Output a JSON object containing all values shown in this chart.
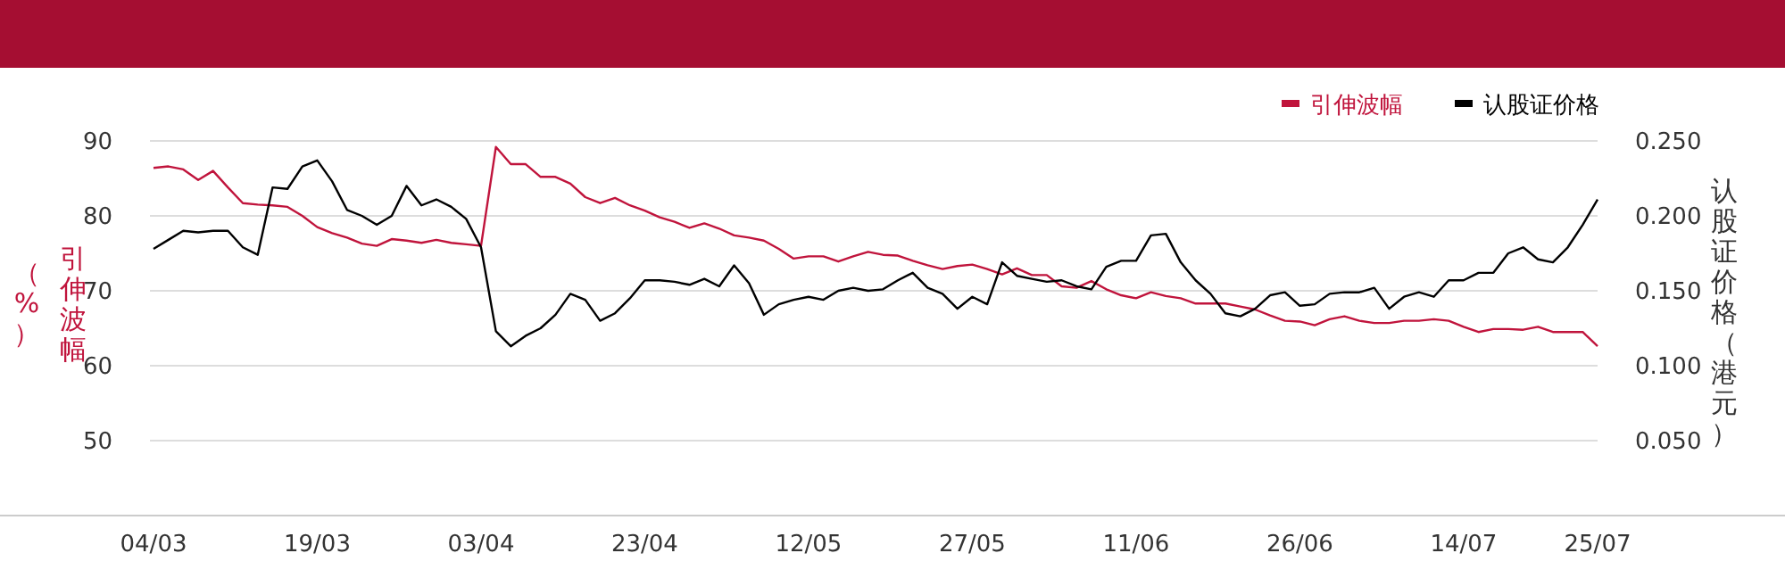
{
  "chart_data": {
    "type": "line",
    "categories": [
      "04/03",
      null,
      null,
      null,
      null,
      null,
      null,
      null,
      null,
      null,
      null,
      "19/03",
      null,
      null,
      null,
      null,
      null,
      null,
      null,
      null,
      null,
      null,
      "03/04",
      null,
      null,
      null,
      null,
      null,
      null,
      null,
      null,
      null,
      null,
      "23/04",
      null,
      null,
      null,
      null,
      null,
      null,
      null,
      null,
      null,
      null,
      "12/05",
      null,
      null,
      null,
      null,
      null,
      null,
      null,
      null,
      null,
      null,
      "27/05",
      null,
      null,
      null,
      null,
      null,
      null,
      null,
      null,
      null,
      null,
      "11/06",
      null,
      null,
      null,
      null,
      null,
      null,
      null,
      null,
      null,
      null,
      "26/06",
      null,
      null,
      null,
      null,
      null,
      null,
      null,
      null,
      null,
      null,
      "14/07",
      null,
      null,
      null,
      null,
      null,
      null,
      null,
      null,
      "25/07"
    ],
    "series": [
      {
        "name": "引伸波幅",
        "color": "#c0143c",
        "values": [
          86.4,
          86.6,
          86.2,
          84.8,
          86.0,
          83.8,
          81.7,
          81.5,
          81.4,
          81.2,
          80.0,
          78.5,
          77.7,
          77.1,
          76.3,
          76.0,
          76.9,
          76.7,
          76.4,
          76.8,
          76.4,
          76.2,
          76.0,
          89.2,
          86.9,
          86.9,
          85.2,
          85.2,
          84.3,
          82.5,
          81.7,
          82.4,
          81.4,
          80.7,
          79.8,
          79.2,
          78.4,
          79.0,
          78.3,
          77.4,
          77.1,
          76.7,
          75.6,
          74.3,
          74.6,
          74.6,
          73.9,
          74.6,
          75.2,
          74.8,
          74.7,
          74.0,
          73.4,
          72.9,
          73.3,
          73.5,
          72.9,
          72.2,
          73.0,
          72.1,
          72.1,
          70.6,
          70.4,
          71.3,
          70.2,
          69.4,
          69.0,
          69.8,
          69.3,
          69.0,
          68.3,
          68.3,
          68.3,
          67.9,
          67.5,
          66.7,
          66.0,
          65.9,
          65.4,
          66.2,
          66.6,
          66.0,
          65.7,
          65.7,
          66.0,
          66.0,
          66.2,
          66.0,
          65.2,
          64.5,
          64.9,
          64.9,
          64.8,
          65.2,
          64.5,
          64.5,
          64.5,
          62.6
        ]
      },
      {
        "name": "认股证价格",
        "color": "#000000",
        "axis": "y2",
        "values": [
          0.178,
          0.184,
          0.19,
          0.189,
          0.19,
          0.19,
          0.179,
          0.174,
          0.219,
          0.218,
          0.233,
          0.237,
          0.223,
          0.204,
          0.2,
          0.194,
          0.2,
          0.22,
          0.207,
          0.211,
          0.206,
          0.198,
          0.179,
          0.123,
          0.113,
          0.12,
          0.125,
          0.134,
          0.148,
          0.144,
          0.13,
          0.135,
          0.145,
          0.157,
          0.157,
          0.156,
          0.154,
          0.158,
          0.153,
          0.167,
          0.155,
          0.134,
          0.141,
          0.144,
          0.146,
          0.144,
          0.15,
          0.152,
          0.15,
          0.151,
          0.157,
          0.162,
          0.152,
          0.148,
          0.138,
          0.146,
          0.141,
          0.169,
          0.16,
          0.158,
          0.156,
          0.157,
          0.153,
          0.151,
          0.166,
          0.17,
          0.17,
          0.187,
          0.188,
          0.169,
          0.157,
          0.148,
          0.135,
          0.133,
          0.138,
          0.147,
          0.149,
          0.14,
          0.141,
          0.148,
          0.149,
          0.149,
          0.152,
          0.138,
          0.146,
          0.149,
          0.146,
          0.157,
          0.157,
          0.162,
          0.162,
          0.175,
          0.179,
          0.171,
          0.169,
          0.179,
          0.194,
          0.211
        ]
      }
    ],
    "ylabel": "引伸波幅（%）",
    "y2label": "认股证价格（港元）",
    "ylim": [
      40,
      90
    ],
    "yticks": [
      50,
      60,
      70,
      80,
      90
    ],
    "y2lim": [
      0,
      0.25
    ],
    "y2ticks": [
      {
        "value": 0.05,
        "label": "0.050"
      },
      {
        "value": 0.1,
        "label": "0.100"
      },
      {
        "value": 0.15,
        "label": "0.150"
      },
      {
        "value": 0.2,
        "label": "0.200"
      },
      {
        "value": 0.25,
        "label": "0.250"
      }
    ],
    "grid": "y",
    "legend": "top right"
  }
}
